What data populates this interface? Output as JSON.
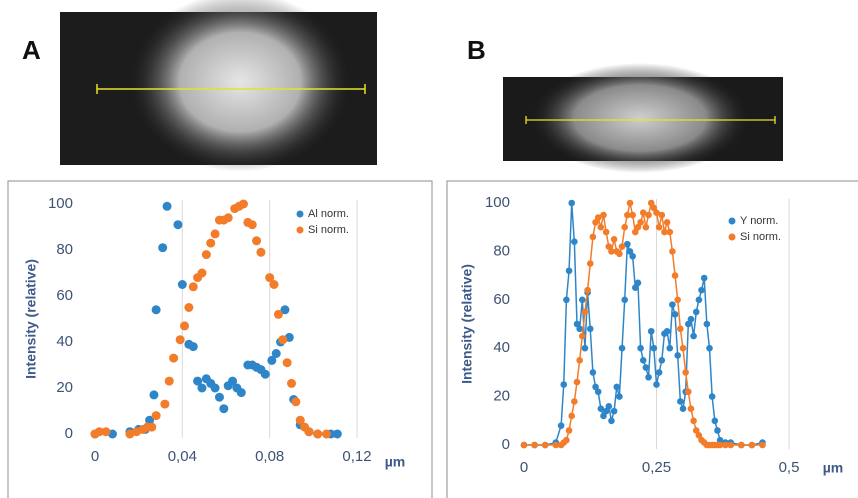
{
  "chart_data": [
    {
      "type": "scatter",
      "panel": "A",
      "y_label": "Intensity (relative)",
      "x_unit": "µm",
      "xlim": [
        0,
        0.12
      ],
      "xticks": [
        0,
        {
          "value": 0.04,
          "label": "0,04"
        },
        {
          "value": 0.08,
          "label": "0,08"
        },
        {
          "value": 0.12,
          "label": "0,12"
        }
      ],
      "ylim": [
        0,
        100
      ],
      "yticks": [
        0,
        20,
        40,
        60,
        80,
        100
      ],
      "grid": "x",
      "legend": "top-right",
      "series": [
        {
          "name": "Al norm.",
          "color": "#2e86c8",
          "x": [
            0.0,
            0.008,
            0.016,
            0.02,
            0.023,
            0.025,
            0.027,
            0.028,
            0.031,
            0.033,
            0.038,
            0.04,
            0.043,
            0.045,
            0.047,
            0.049,
            0.051,
            0.053,
            0.055,
            0.057,
            0.059,
            0.061,
            0.063,
            0.065,
            0.067,
            0.07,
            0.072,
            0.074,
            0.076,
            0.078,
            0.081,
            0.083,
            0.085,
            0.087,
            0.089,
            0.091,
            0.094,
            0.098,
            0.102,
            0.108,
            0.111
          ],
          "values": [
            0,
            0,
            1,
            2,
            2,
            6,
            17,
            54,
            81,
            99,
            91,
            65,
            39,
            38,
            23,
            20,
            24,
            22,
            20,
            16,
            11,
            21,
            23,
            20,
            18,
            30,
            30,
            29,
            28,
            26,
            32,
            35,
            40,
            54,
            42,
            15,
            4,
            1,
            0,
            0,
            0
          ]
        },
        {
          "name": "Si norm.",
          "color": "#f27c2a",
          "x": [
            0.0,
            0.002,
            0.005,
            0.016,
            0.019,
            0.022,
            0.024,
            0.026,
            0.028,
            0.032,
            0.034,
            0.036,
            0.039,
            0.041,
            0.043,
            0.045,
            0.047,
            0.049,
            0.051,
            0.053,
            0.055,
            0.057,
            0.059,
            0.061,
            0.064,
            0.066,
            0.068,
            0.07,
            0.072,
            0.074,
            0.076,
            0.08,
            0.082,
            0.084,
            0.086,
            0.088,
            0.09,
            0.092,
            0.094,
            0.096,
            0.098,
            0.102,
            0.106
          ],
          "values": [
            0,
            1,
            1,
            0,
            1,
            2,
            3,
            3,
            8,
            13,
            23,
            33,
            41,
            47,
            55,
            64,
            68,
            70,
            78,
            83,
            87,
            93,
            93,
            94,
            98,
            99,
            100,
            92,
            91,
            84,
            79,
            68,
            65,
            52,
            41,
            31,
            22,
            14,
            6,
            3,
            1,
            0,
            0
          ]
        }
      ]
    },
    {
      "type": "line",
      "panel": "B",
      "y_label": "Intensity (relative)",
      "x_unit": "µm",
      "xlim": [
        0,
        0.5
      ],
      "xticks": [
        0,
        {
          "value": 0.25,
          "label": "0,25"
        },
        {
          "value": 0.5,
          "label": "0,5"
        }
      ],
      "ylim": [
        0,
        100
      ],
      "yticks": [
        0,
        20,
        40,
        60,
        80,
        100
      ],
      "grid": "x",
      "legend": "top-right",
      "x": [
        0,
        0.02,
        0.04,
        0.06,
        0.07,
        0.075,
        0.08,
        0.085,
        0.09,
        0.095,
        0.1,
        0.105,
        0.11,
        0.115,
        0.12,
        0.125,
        0.13,
        0.135,
        0.14,
        0.145,
        0.15,
        0.155,
        0.16,
        0.165,
        0.17,
        0.175,
        0.18,
        0.185,
        0.19,
        0.195,
        0.2,
        0.205,
        0.21,
        0.215,
        0.22,
        0.225,
        0.23,
        0.235,
        0.24,
        0.245,
        0.25,
        0.255,
        0.26,
        0.265,
        0.27,
        0.275,
        0.28,
        0.285,
        0.29,
        0.295,
        0.3,
        0.305,
        0.31,
        0.315,
        0.32,
        0.325,
        0.33,
        0.335,
        0.34,
        0.345,
        0.35,
        0.355,
        0.36,
        0.365,
        0.37,
        0.38,
        0.39,
        0.41,
        0.43,
        0.45
      ],
      "series": [
        {
          "name": "Y norm.",
          "color": "#2e86c8",
          "values": [
            0,
            0,
            0,
            1,
            8,
            25,
            60,
            72,
            100,
            84,
            50,
            48,
            60,
            40,
            63,
            48,
            30,
            24,
            22,
            15,
            12,
            14,
            16,
            10,
            14,
            24,
            20,
            40,
            60,
            83,
            80,
            78,
            65,
            67,
            40,
            35,
            32,
            28,
            47,
            40,
            25,
            30,
            35,
            46,
            47,
            40,
            58,
            54,
            37,
            18,
            15,
            22,
            50,
            52,
            45,
            55,
            60,
            64,
            69,
            50,
            40,
            20,
            10,
            6,
            2,
            1,
            1,
            0,
            0,
            1
          ]
        },
        {
          "name": "Si norm.",
          "color": "#f27c2a",
          "values": [
            0,
            0,
            0,
            0,
            0,
            1,
            2,
            6,
            12,
            18,
            26,
            35,
            45,
            55,
            64,
            75,
            86,
            92,
            94,
            90,
            95,
            88,
            82,
            80,
            85,
            80,
            79,
            82,
            90,
            95,
            100,
            95,
            88,
            90,
            92,
            96,
            90,
            95,
            100,
            98,
            96,
            90,
            95,
            88,
            92,
            88,
            80,
            70,
            60,
            48,
            40,
            30,
            22,
            15,
            10,
            6,
            4,
            2,
            1,
            0,
            0,
            0,
            0,
            0,
            0,
            0,
            0,
            0,
            0,
            0
          ]
        }
      ]
    }
  ]
}
